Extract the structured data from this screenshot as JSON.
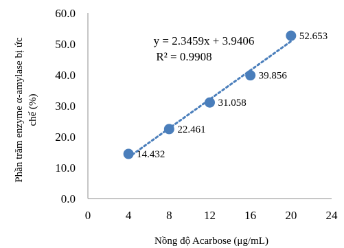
{
  "chart_data": {
    "type": "scatter",
    "x": [
      4,
      8,
      12,
      16,
      20
    ],
    "y": [
      14.432,
      22.461,
      31.058,
      39.856,
      52.653
    ],
    "data_labels": [
      "14.432",
      "22.461",
      "31.058",
      "39.856",
      "52.653"
    ],
    "xlabel": "Nồng độ Acarbose (μg/mL)",
    "ylabel_lines": [
      "Phần trăm enzyme α-amylase bị ức",
      "chế (%)"
    ],
    "xlim": [
      0,
      24
    ],
    "ylim": [
      0,
      60
    ],
    "x_ticks": [
      0,
      4,
      8,
      12,
      16,
      20,
      24
    ],
    "y_ticks": [
      0,
      10,
      20,
      30,
      40,
      50,
      60
    ],
    "x_tick_labels": [
      "0",
      "4",
      "8",
      "12",
      "16",
      "20",
      "24"
    ],
    "y_tick_labels": [
      "0.0",
      "10.0",
      "20.0",
      "30.0",
      "40.0",
      "50.0",
      "60.0"
    ],
    "grid": false,
    "trendline": {
      "type": "linear",
      "style": "dotted",
      "slope": 2.3459,
      "intercept": 3.9406,
      "equation": "y = 2.3459x + 3.9406",
      "r_squared": "R² = 0.9908"
    },
    "marker_color": "#4a7ebb"
  }
}
